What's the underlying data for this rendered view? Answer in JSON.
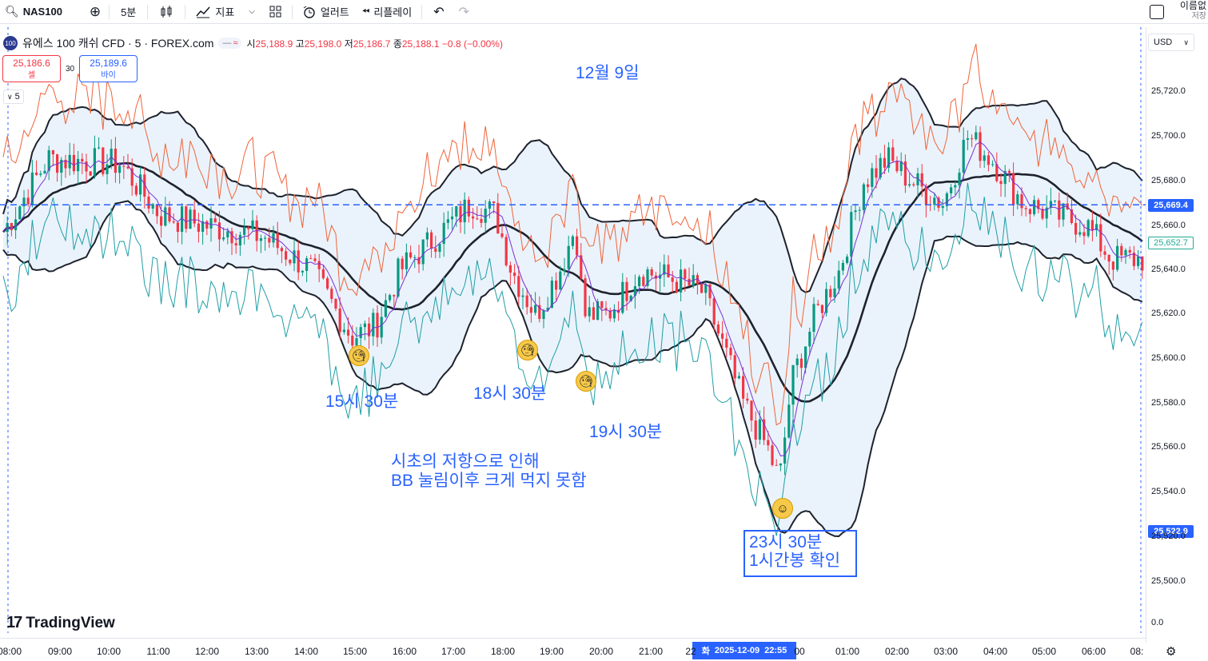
{
  "toolbar": {
    "symbol": "NAS100",
    "interval": "5분",
    "indicators": "지표",
    "alerts": "얼러트",
    "replay": "리플레이",
    "name": "이름없",
    "save": "저장"
  },
  "legend": {
    "title": "유에스 100 캐쉬 CFD · 5 · FOREX.com",
    "badge": "100",
    "pill_a": "—",
    "pill_b": "≈",
    "o_label": "시",
    "o": "25,188.9",
    "h_label": "고",
    "h": "25,198.0",
    "l_label": "저",
    "l": "25,186.7",
    "c_label": "종",
    "c": "25,188.1",
    "change": "−0.8 (−0.00%)"
  },
  "trade": {
    "sell_price": "25,186.6",
    "sell_label": "셀",
    "spread": "30",
    "buy_price": "25,189.6",
    "buy_label": "바이"
  },
  "interval_badge": "5",
  "price_scale": {
    "currency": "USD",
    "labels": [
      "25,720.0",
      "25,700.0",
      "25,680.0",
      "25,660.0",
      "25,640.0",
      "25,620.0",
      "25,600.0",
      "25,580.0",
      "25,560.0",
      "25,540.0",
      "25,520.0",
      "25,500.0",
      "0.0"
    ],
    "tag_dashed": "25,669.4",
    "tag_last": "25,652.7",
    "tag_cursor": "25,522.9"
  },
  "time_scale": {
    "labels": [
      "08:00",
      "09:00",
      "10:00",
      "11:00",
      "12:00",
      "13:00",
      "14:00",
      "15:00",
      "16:00",
      "17:00",
      "18:00",
      "19:00",
      "20:00",
      "21:00",
      "22",
      "00",
      "01:00",
      "02:00",
      "03:00",
      "04:00",
      "05:00",
      "06:00",
      "08:"
    ],
    "cursor_day": "화",
    "cursor_date": "2025-12-09",
    "cursor_time": "22:55"
  },
  "annotations": {
    "date": "12월 9일",
    "t1530": "15시 30분",
    "t1830": "18시 30분",
    "t1930": "19시 30분",
    "note_line1": "시초의 저항으로 인해",
    "note_line2": "BB 눌림이후 크게 먹지 못함",
    "box_line1": "23시 30분",
    "box_line2": "1시간봉 확인"
  },
  "logo": "TradingView",
  "colors": {
    "up": "#089981",
    "down": "#f23645",
    "accent": "#2962ff",
    "bb_outer": "#1e222d",
    "upper_env": "#f0633a",
    "lower_env": "#1f9ea6",
    "fast_ma": "#7b2fd6"
  },
  "chart_data": {
    "type": "candlestick",
    "symbol": "NAS100",
    "timeframe": "5",
    "ylim": [
      25490,
      25735
    ],
    "dashed_level": 25669.4,
    "last_price": 25652.7,
    "key_points": [
      {
        "time": "15:30",
        "low": 25603
      },
      {
        "time": "18:30",
        "low": 25601
      },
      {
        "time": "19:30",
        "low": 25590
      },
      {
        "time": "23:30",
        "low": 25530
      }
    ]
  }
}
